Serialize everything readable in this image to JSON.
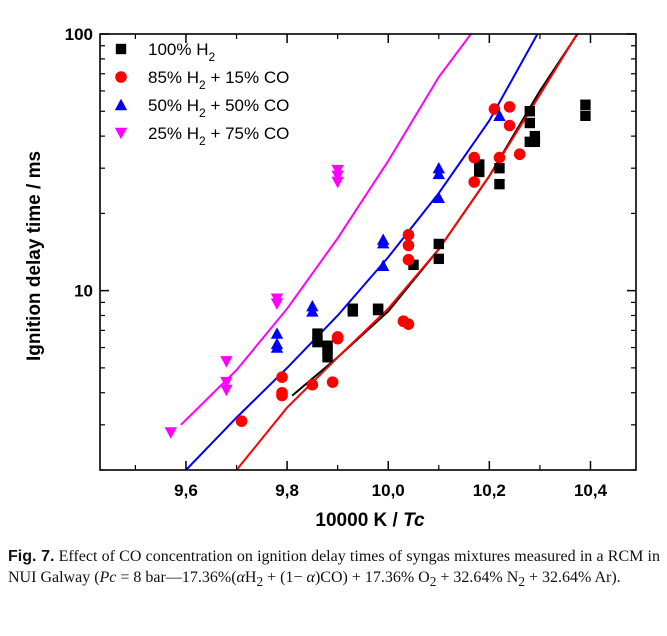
{
  "chart_data": {
    "type": "scatter",
    "xlabel": "10000 K / ",
    "xlabel_italic": "Tc",
    "ylabel": "Ignition delay time / ms",
    "xlim": [
      9.43,
      10.49
    ],
    "ylim": [
      2,
      100
    ],
    "yscale": "log",
    "x_ticks": [
      {
        "v": 9.6,
        "label": "9,6"
      },
      {
        "v": 9.8,
        "label": "9,8"
      },
      {
        "v": 10.0,
        "label": "10,0"
      },
      {
        "v": 10.2,
        "label": "10,2"
      },
      {
        "v": 10.4,
        "label": "10,4"
      }
    ],
    "y_ticks": [
      {
        "v": 10,
        "label": "10"
      },
      {
        "v": 100,
        "label": "100"
      }
    ],
    "legend_position": "top-left",
    "grid": false,
    "series": [
      {
        "name": "100% H",
        "name_sub": "2",
        "name_rest": "",
        "color": "#000000",
        "marker": "square",
        "points": [
          [
            9.86,
            6.8
          ],
          [
            9.86,
            6.3
          ],
          [
            9.88,
            6.1
          ],
          [
            9.88,
            5.9
          ],
          [
            9.88,
            5.5
          ],
          [
            9.93,
            8.5
          ],
          [
            9.93,
            8.3
          ],
          [
            9.98,
            8.4
          ],
          [
            9.98,
            8.5
          ],
          [
            10.05,
            12.6
          ],
          [
            10.1,
            15.2
          ],
          [
            10.1,
            13.3
          ],
          [
            10.18,
            31
          ],
          [
            10.18,
            29
          ],
          [
            10.22,
            30
          ],
          [
            10.22,
            26
          ],
          [
            10.28,
            50
          ],
          [
            10.28,
            45
          ],
          [
            10.28,
            38
          ],
          [
            10.29,
            40
          ],
          [
            10.29,
            38
          ],
          [
            10.39,
            53
          ],
          [
            10.39,
            48
          ]
        ],
        "fit": [
          [
            9.81,
            3.9
          ],
          [
            9.9,
            5.5
          ],
          [
            10.0,
            8.3
          ],
          [
            10.1,
            14.5
          ],
          [
            10.2,
            28
          ],
          [
            10.3,
            60
          ],
          [
            10.38,
            104
          ]
        ]
      },
      {
        "name": "85% H",
        "name_sub": "2",
        "name_rest": " + 15% CO",
        "color": "#ff0000",
        "marker": "circle",
        "points": [
          [
            9.71,
            3.1
          ],
          [
            9.79,
            4.6
          ],
          [
            9.79,
            4.0
          ],
          [
            9.79,
            3.9
          ],
          [
            9.85,
            4.3
          ],
          [
            9.89,
            4.4
          ],
          [
            9.9,
            6.6
          ],
          [
            9.9,
            6.5
          ],
          [
            10.03,
            7.6
          ],
          [
            10.04,
            7.4
          ],
          [
            10.04,
            16.5
          ],
          [
            10.04,
            15
          ],
          [
            10.04,
            13.2
          ],
          [
            10.17,
            33
          ],
          [
            10.17,
            26.5
          ],
          [
            10.21,
            51
          ],
          [
            10.24,
            52
          ],
          [
            10.24,
            44
          ],
          [
            10.26,
            34
          ],
          [
            10.22,
            33
          ]
        ],
        "fit": [
          [
            9.7,
            2.0
          ],
          [
            9.8,
            3.5
          ],
          [
            9.9,
            5.5
          ],
          [
            10.0,
            8.5
          ],
          [
            10.1,
            14.5
          ],
          [
            10.2,
            28
          ],
          [
            10.3,
            58
          ],
          [
            10.38,
            105
          ]
        ]
      },
      {
        "name": "50% H",
        "name_sub": "2",
        "name_rest": " + 50% CO",
        "color": "#0000ff",
        "marker": "triangle",
        "points": [
          [
            9.78,
            6.8
          ],
          [
            9.78,
            6.2
          ],
          [
            9.78,
            6.0
          ],
          [
            9.85,
            8.7
          ],
          [
            9.85,
            8.3
          ],
          [
            9.99,
            15.8
          ],
          [
            9.99,
            15.3
          ],
          [
            9.99,
            12.5
          ],
          [
            10.1,
            30
          ],
          [
            10.1,
            28.5
          ],
          [
            10.1,
            23
          ],
          [
            10.22,
            48
          ]
        ],
        "fit": [
          [
            9.6,
            2.0
          ],
          [
            9.7,
            3.2
          ],
          [
            9.8,
            5.0
          ],
          [
            9.9,
            8.0
          ],
          [
            10.0,
            13.5
          ],
          [
            10.1,
            24
          ],
          [
            10.2,
            46
          ],
          [
            10.3,
            104
          ]
        ]
      },
      {
        "name": "25% H",
        "name_sub": "2",
        "name_rest": " + 75% CO",
        "color": "#ff00ff",
        "marker": "triangle-down",
        "points": [
          [
            9.57,
            2.8
          ],
          [
            9.68,
            5.3
          ],
          [
            9.68,
            4.4
          ],
          [
            9.68,
            4.1
          ],
          [
            9.78,
            9.3
          ],
          [
            9.78,
            8.9
          ],
          [
            9.9,
            29.5
          ],
          [
            9.9,
            28
          ],
          [
            9.9,
            26.5
          ]
        ],
        "fit": [
          [
            9.59,
            3.0
          ],
          [
            9.7,
            4.9
          ],
          [
            9.8,
            8.5
          ],
          [
            9.9,
            16
          ],
          [
            10.0,
            32
          ],
          [
            10.1,
            68
          ],
          [
            10.17,
            104
          ]
        ]
      }
    ]
  },
  "caption": {
    "fig_label": "Fig. 7.",
    "part1": " Effect of CO concentration on ignition delay times of syngas mixtures measured in a RCM in NUI Galway (",
    "pc_symbol": "Pc",
    "part2": " = 8 bar—17.36%(",
    "alpha": "α",
    "h2_text": "H",
    "h2_sub": "2",
    "part3": " + (1− ",
    "part4": ")CO) + 17.36% O",
    "o2_sub": "2",
    "part5": " + 32.64% N",
    "n2_sub": "2",
    "part6": " + 32.64% Ar)."
  }
}
